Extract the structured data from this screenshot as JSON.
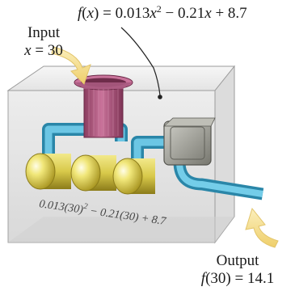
{
  "function_label": {
    "prefix": "f",
    "arg": "x",
    "equals": ") = 0.013",
    "var1": "x",
    "exp": "2",
    "mid": " − 0.21",
    "var2": "x",
    "tail": " + 8.7"
  },
  "input": {
    "title": "Input",
    "var": "x",
    "value": " = 30"
  },
  "output": {
    "title": "Output",
    "fn": "f",
    "value": "(30) = 14.1"
  },
  "machine_text": {
    "part1": "0.013(30)",
    "exp": "2",
    "part2": " − 0.21(30) + 8.7"
  },
  "colors": {
    "funnel": "#b0557a",
    "pipe": "#3aa6c9",
    "tank": "#e2d457",
    "motor": "#9a9a92",
    "arrow": "#f3dc8a"
  }
}
